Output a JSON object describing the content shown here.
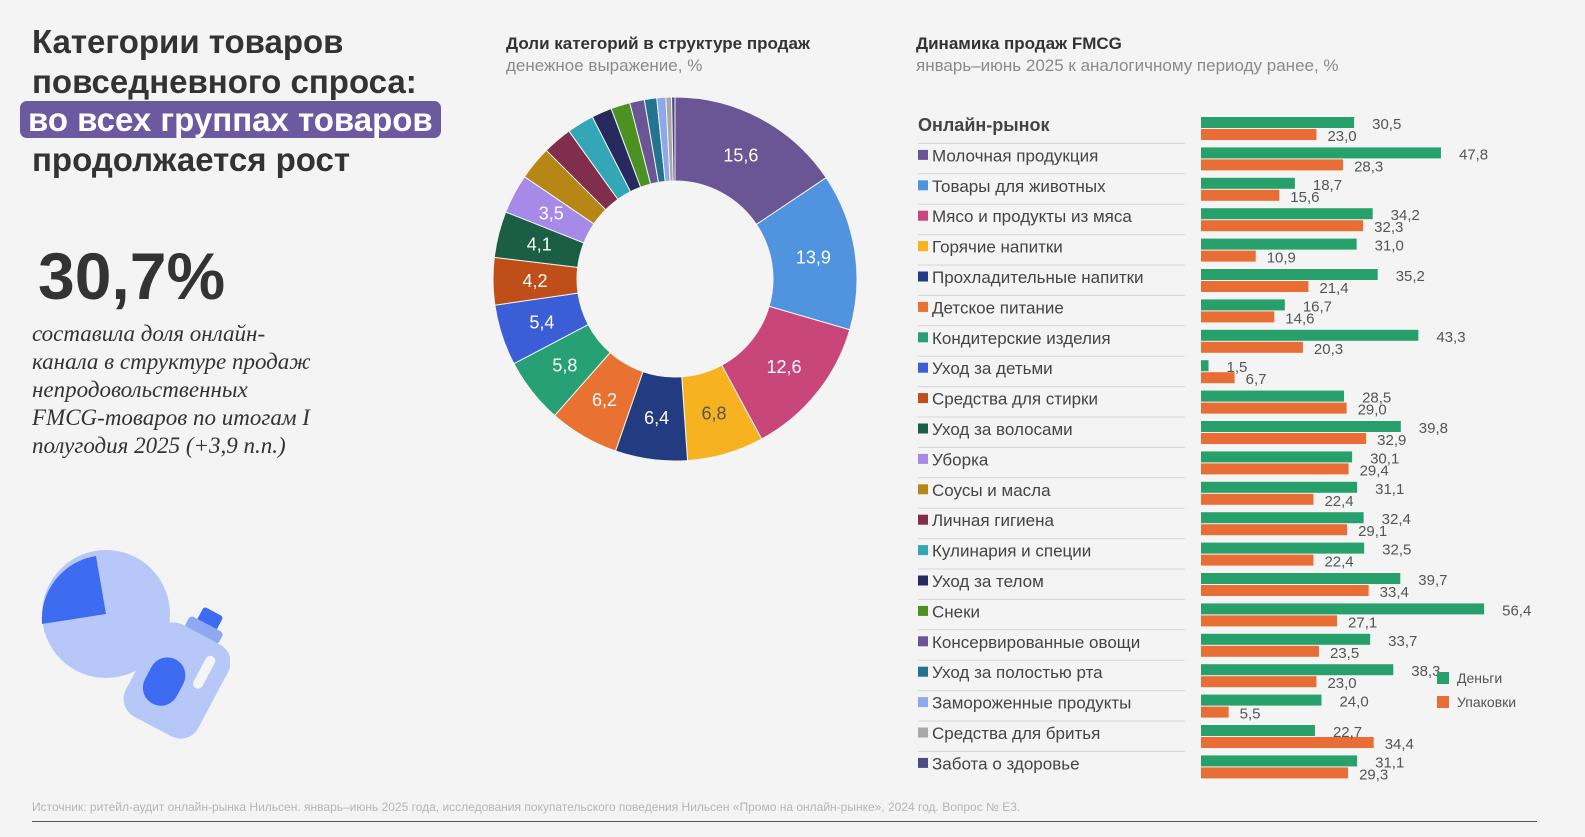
{
  "headline": {
    "line1": "Категории товаров",
    "line2": "повседневного спроса:",
    "line3": "во всех группах товаров",
    "line4": "продолжается рост"
  },
  "kpi": {
    "value": "30,7%",
    "description": "составила доля онлайн-канала в структуре продаж непродовольственных FMCG-товаров по итогам I полугодия 2025 (+3,9 п.п.)"
  },
  "donut": {
    "title": "Доли категорий в структуре продаж",
    "subtitle": "денежное выражение, %"
  },
  "bars": {
    "title": "Динамика продаж FMCG",
    "subtitle": "январь–июнь 2025 к аналогичному периоду ранее, %"
  },
  "source": "Источник: ритейл-аудит онлайн-рынка Нильсен. январь–июнь 2025 года, исследования покупательского поведения Нильсен «Промо на онлайн-рынке», 2024 год. Вопрос № Е3.",
  "colors": {
    "money": "#27a06b",
    "packs": "#e86e35",
    "highlight": "#6b5aa0"
  },
  "chart_data": [
    {
      "type": "pie",
      "title": "Доли категорий в структуре продаж",
      "subtitle": "денежное выражение, %",
      "slices": [
        {
          "label": "Молочная продукция",
          "value": 15.6,
          "display": "15,6",
          "color": "#6a5595"
        },
        {
          "label": "Товары для животных",
          "value": 13.9,
          "display": "13,9",
          "color": "#5093de"
        },
        {
          "label": "Мясо и продукты из мяса",
          "value": 12.6,
          "display": "12,6",
          "color": "#c84679"
        },
        {
          "label": "Горячие напитки",
          "value": 6.8,
          "display": "6,8",
          "color": "#f6b21f"
        },
        {
          "label": "Прохладительные напитки",
          "value": 6.4,
          "display": "6,4",
          "color": "#233b80"
        },
        {
          "label": "Детское питание",
          "value": 6.2,
          "display": "6,2",
          "color": "#e97233"
        },
        {
          "label": "Кондитерские изделия",
          "value": 5.8,
          "display": "5,8",
          "color": "#26a074"
        },
        {
          "label": "Уход за детьми",
          "value": 5.4,
          "display": "5,4",
          "color": "#3b5ed6"
        },
        {
          "label": "Средства для стирки",
          "value": 4.2,
          "display": "4,2",
          "color": "#c04e18"
        },
        {
          "label": "Уход за волосами",
          "value": 4.1,
          "display": "4,1",
          "color": "#1a5e45"
        },
        {
          "label": "Уборка",
          "value": 3.5,
          "display": "3,5",
          "color": "#a78ae8"
        },
        {
          "label": "Соусы и масла",
          "value": 3.0,
          "display": "",
          "color": "#b78716"
        },
        {
          "label": "Личная гигиена",
          "value": 2.6,
          "display": "",
          "color": "#812d4c"
        },
        {
          "label": "Кулинария и специи",
          "value": 2.4,
          "display": "",
          "color": "#33a7b5"
        },
        {
          "label": "Уход за телом",
          "value": 1.8,
          "display": "",
          "color": "#272a5c"
        },
        {
          "label": "Снеки",
          "value": 1.7,
          "display": "",
          "color": "#4c9222"
        },
        {
          "label": "Консервированные овощи",
          "value": 1.3,
          "display": "",
          "color": "#6a5595"
        },
        {
          "label": "Уход за полостью рта",
          "value": 1.1,
          "display": "",
          "color": "#23748f"
        },
        {
          "label": "Замороженные продукты",
          "value": 0.8,
          "display": "",
          "color": "#8fa8ec"
        },
        {
          "label": "Средства для бритья",
          "value": 0.5,
          "display": "",
          "color": "#a8a8a8"
        },
        {
          "label": "Забота о здоровье",
          "value": 0.3,
          "display": "",
          "color": "#4d4a86"
        }
      ]
    },
    {
      "type": "bar",
      "orientation": "horizontal",
      "title": "Динамика продаж FMCG",
      "subtitle": "январь–июнь 2025 к аналогичному периоду ранее, %",
      "legend_position": "right",
      "series": [
        {
          "name": "Деньги",
          "color": "#27a06b"
        },
        {
          "name": "Упаковки",
          "color": "#e86e35"
        }
      ],
      "rows": [
        {
          "label": "Онлайн-рынок",
          "bold": true,
          "marker": "",
          "money": 30.5,
          "money_label": "30,5",
          "packs": 23.0,
          "packs_label": "23,0"
        },
        {
          "label": "Молочная продукция",
          "marker": "#6a5595",
          "money": 47.8,
          "money_label": "47,8",
          "packs": 28.3,
          "packs_label": "28,3"
        },
        {
          "label": "Товары для животных",
          "marker": "#5093de",
          "money": 18.7,
          "money_label": "18,7",
          "packs": 15.6,
          "packs_label": "15,6"
        },
        {
          "label": "Мясо и продукты из мяса",
          "marker": "#c84679",
          "money": 34.2,
          "money_label": "34,2",
          "packs": 32.3,
          "packs_label": "32,3"
        },
        {
          "label": "Горячие напитки",
          "marker": "#f6b21f",
          "money": 31.0,
          "money_label": "31,0",
          "packs": 10.9,
          "packs_label": "10,9"
        },
        {
          "label": "Прохладительные напитки",
          "marker": "#233b80",
          "money": 35.2,
          "money_label": "35,2",
          "packs": 21.4,
          "packs_label": "21,4"
        },
        {
          "label": "Детское питание",
          "marker": "#e97233",
          "money": 16.7,
          "money_label": "16,7",
          "packs": 14.6,
          "packs_label": "14,6"
        },
        {
          "label": "Кондитерские изделия",
          "marker": "#26a074",
          "money": 43.3,
          "money_label": "43,3",
          "packs": 20.3,
          "packs_label": "20,3"
        },
        {
          "label": "Уход за детьми",
          "marker": "#3b5ed6",
          "money": 1.5,
          "money_label": "1,5",
          "packs": 6.7,
          "packs_label": "6,7"
        },
        {
          "label": "Средства для стирки",
          "marker": "#c04e18",
          "money": 28.5,
          "money_label": "28,5",
          "packs": 29.0,
          "packs_label": "29,0"
        },
        {
          "label": "Уход за волосами",
          "marker": "#1a5e45",
          "money": 39.8,
          "money_label": "39,8",
          "packs": 32.9,
          "packs_label": "32,9"
        },
        {
          "label": "Уборка",
          "marker": "#a78ae8",
          "money": 30.1,
          "money_label": "30,1",
          "packs": 29.4,
          "packs_label": "29,4"
        },
        {
          "label": "Соусы и масла",
          "marker": "#b78716",
          "money": 31.1,
          "money_label": "31,1",
          "packs": 22.4,
          "packs_label": "22,4"
        },
        {
          "label": "Личная гигиена",
          "marker": "#812d4c",
          "money": 32.4,
          "money_label": "32,4",
          "packs": 29.1,
          "packs_label": "29,1"
        },
        {
          "label": "Кулинария и специи",
          "marker": "#33a7b5",
          "money": 32.5,
          "money_label": "32,5",
          "packs": 22.4,
          "packs_label": "22,4"
        },
        {
          "label": "Уход за телом",
          "marker": "#272a5c",
          "money": 39.7,
          "money_label": "39,7",
          "packs": 33.4,
          "packs_label": "33,4"
        },
        {
          "label": "Снеки",
          "marker": "#4c9222",
          "money": 56.4,
          "money_label": "56,4",
          "packs": 27.1,
          "packs_label": "27,1"
        },
        {
          "label": "Консервированные овощи",
          "marker": "#6a5595",
          "money": 33.7,
          "money_label": "33,7",
          "packs": 23.5,
          "packs_label": "23,5"
        },
        {
          "label": "Уход за полостью рта",
          "marker": "#23748f",
          "money": 38.3,
          "money_label": "38,3",
          "packs": 23.0,
          "packs_label": "23,0"
        },
        {
          "label": "Замороженные продукты",
          "marker": "#8fa8ec",
          "money": 24.0,
          "money_label": "24,0",
          "packs": 5.5,
          "packs_label": "5,5"
        },
        {
          "label": "Средства для бритья",
          "marker": "#a8a8a8",
          "money": 22.7,
          "money_label": "22,7",
          "packs": 34.4,
          "packs_label": "34,4"
        },
        {
          "label": "Забота о здоровье",
          "marker": "#4d4a86",
          "money": 31.1,
          "money_label": "31,1",
          "packs": 29.3,
          "packs_label": "29,3"
        }
      ]
    }
  ]
}
